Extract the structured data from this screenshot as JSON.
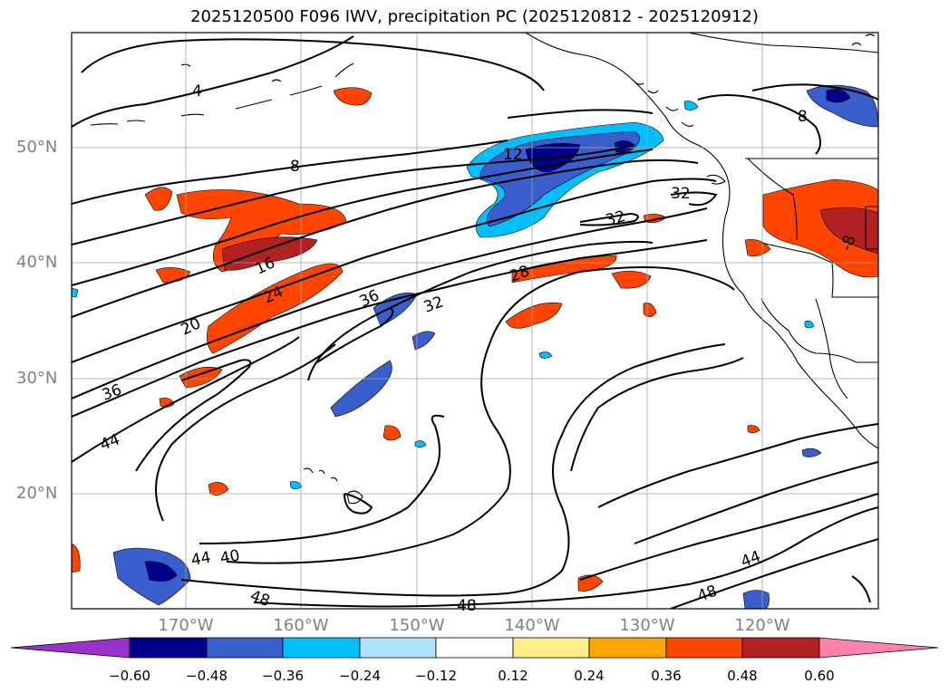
{
  "title": "2025120500 F096 IWV, precipitation PC (2025120812 - 2025120912)",
  "lat_labels": [
    "50°N",
    "40°N",
    "30°N",
    "20°N"
  ],
  "lon_labels": [
    "170°W",
    "160°W",
    "150°W",
    "140°W",
    "130°W",
    "120°W"
  ],
  "contour_labels": [
    "4",
    "8",
    "8",
    "12",
    "16",
    "20",
    "24",
    "28",
    "32",
    "32",
    "32",
    "36",
    "36",
    "40",
    "44",
    "44",
    "44",
    "48",
    "48",
    "48",
    "-8"
  ],
  "colorbar": {
    "ticks": [
      "−0.60",
      "−0.48",
      "−0.36",
      "−0.24",
      "−0.12",
      "0.12",
      "0.24",
      "0.36",
      "0.48",
      "0.60"
    ],
    "colors": [
      "#9932cc",
      "#00008b",
      "#3a5fcd",
      "#00bfff",
      "#b0e2ff",
      "#ffffff",
      "#ffec8b",
      "#ffa500",
      "#ff4500",
      "#b22222",
      "#ff82ab"
    ]
  }
}
